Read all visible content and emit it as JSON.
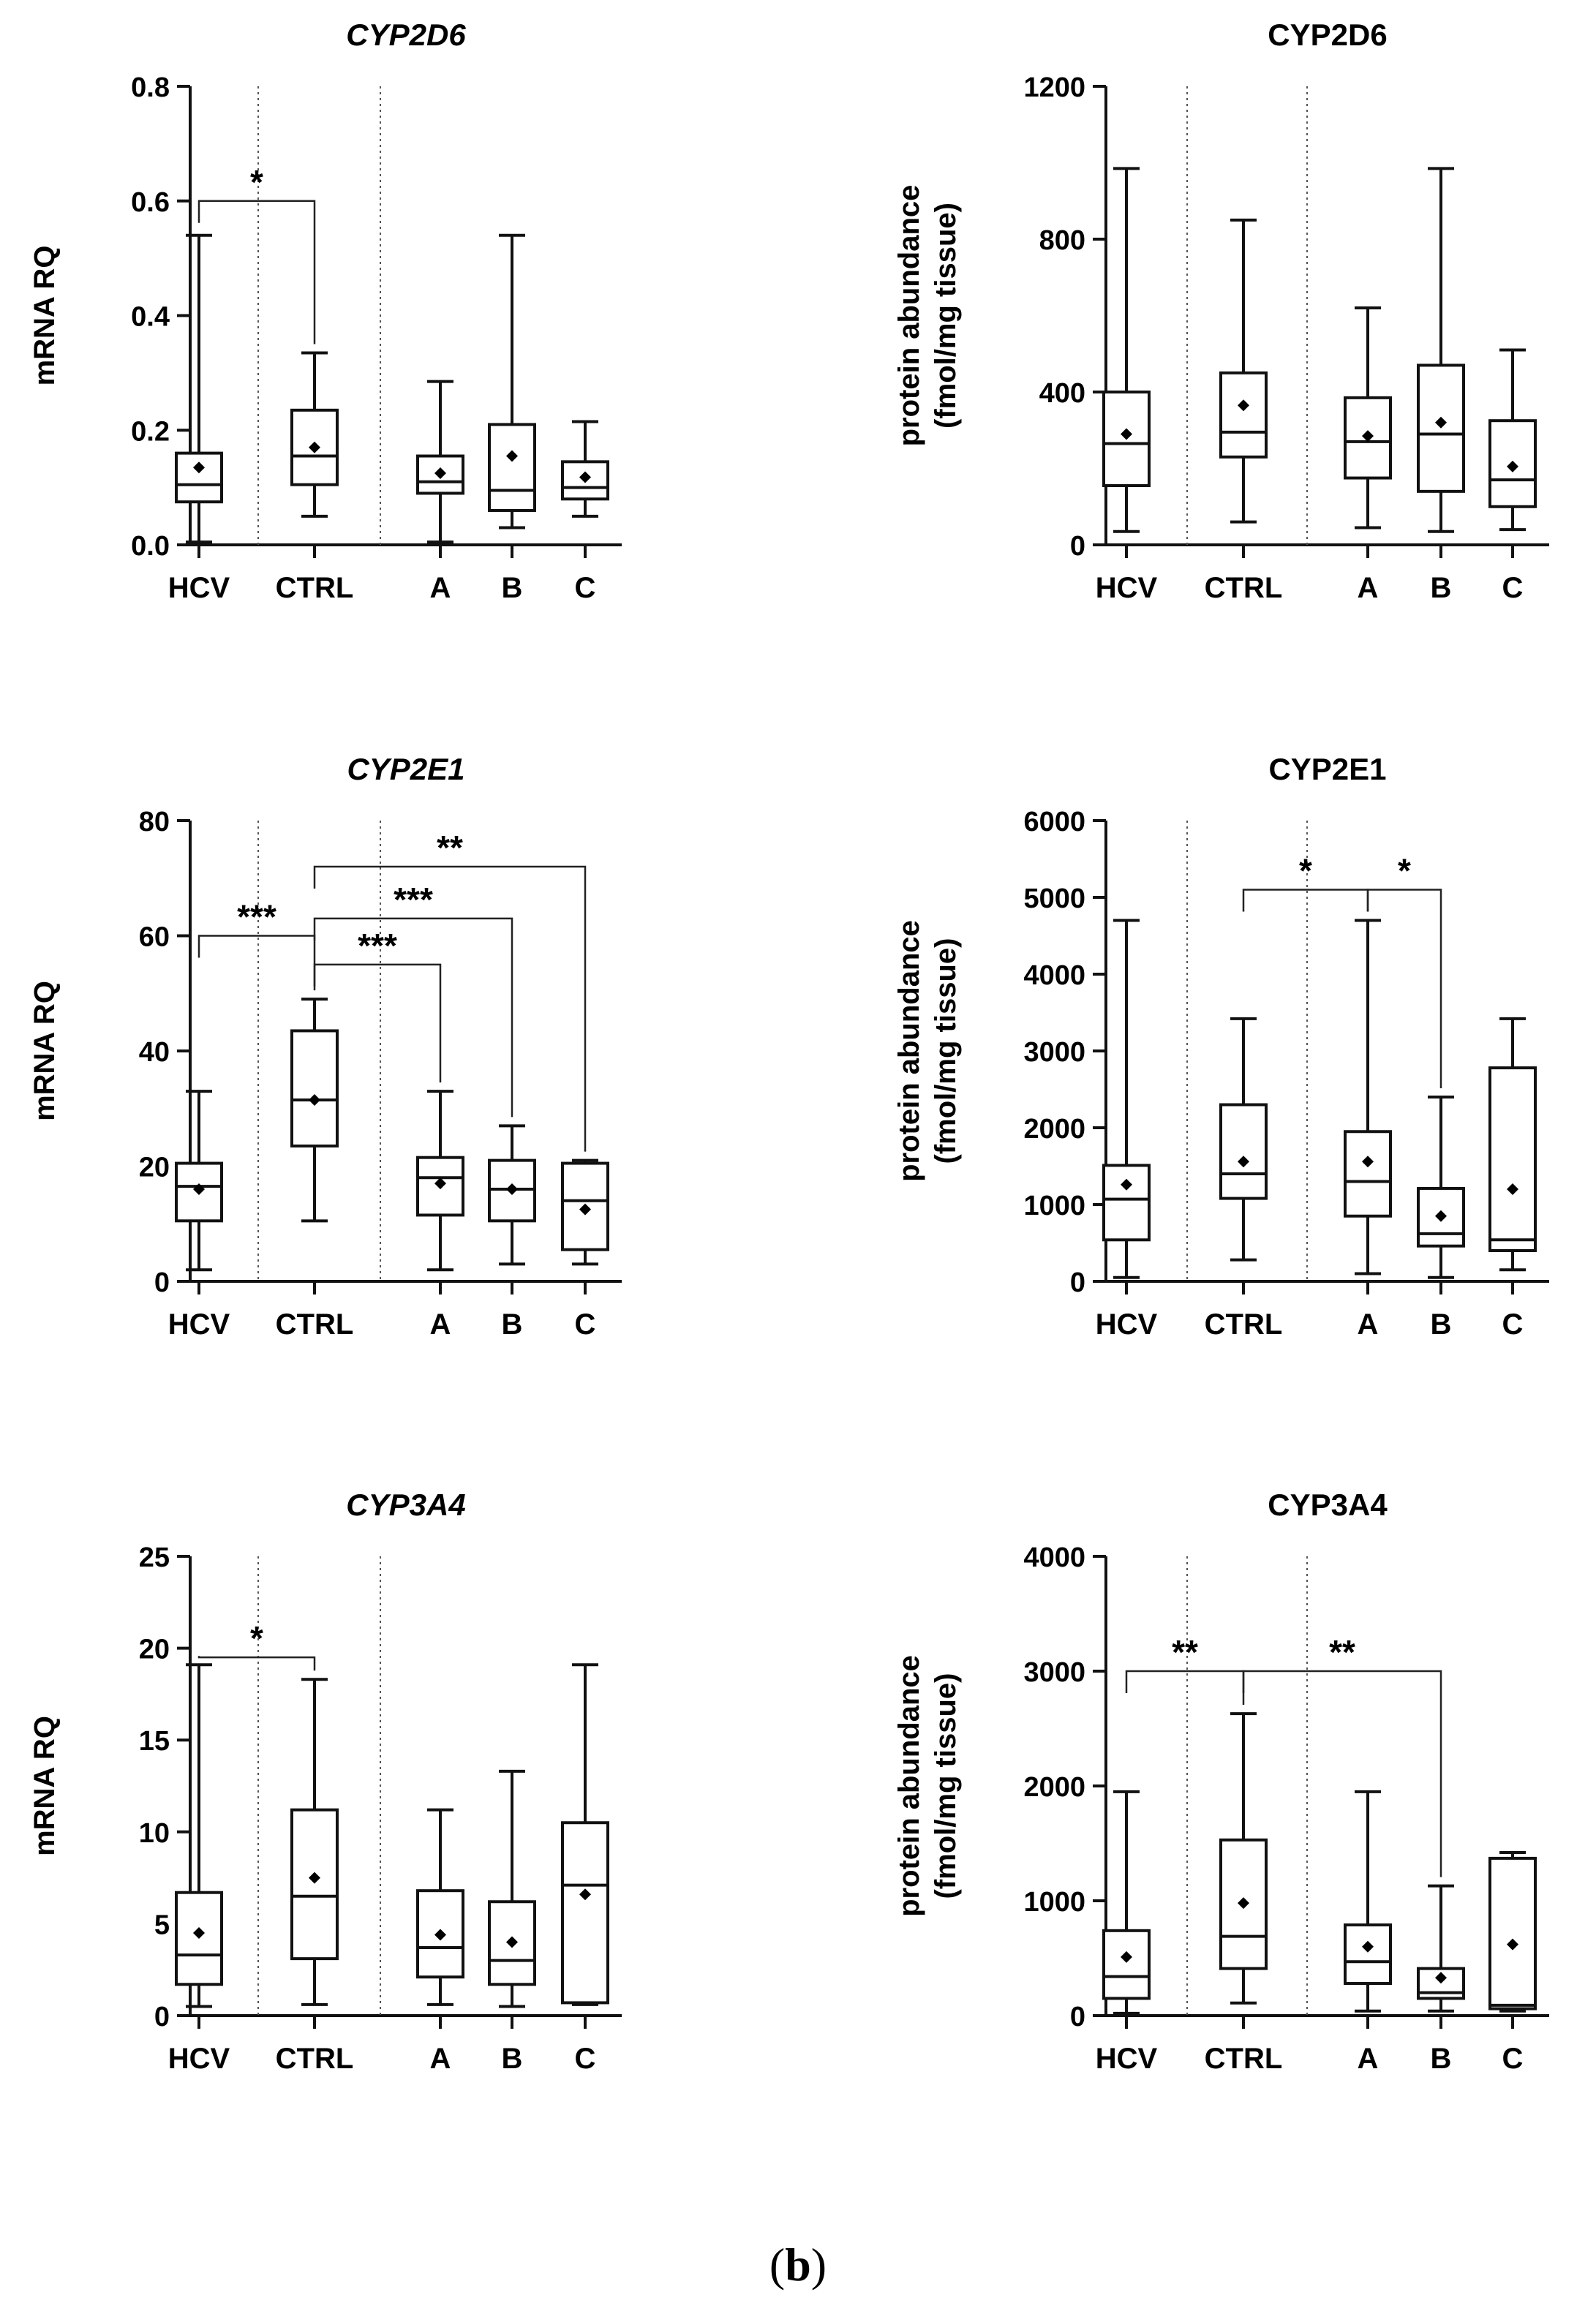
{
  "caption": {
    "open": "(",
    "letter": "b",
    "close": ")"
  },
  "chart_data": [
    {
      "type": "boxplot",
      "title": "CYP2D6",
      "title_italic": true,
      "ylabel": [
        "mRNA RQ"
      ],
      "ylim": [
        0,
        0.8
      ],
      "yticks": [
        "0.0",
        "0.2",
        "0.4",
        "0.6",
        "0.8"
      ],
      "categories": [
        "HCV",
        "CTRL",
        "A",
        "B",
        "C"
      ],
      "boxes": [
        {
          "min": 0.005,
          "q1": 0.075,
          "median": 0.105,
          "q3": 0.16,
          "max": 0.54,
          "mean": 0.135
        },
        {
          "min": 0.05,
          "q1": 0.105,
          "median": 0.155,
          "q3": 0.235,
          "max": 0.335,
          "mean": 0.17
        },
        {
          "min": 0.005,
          "q1": 0.09,
          "median": 0.11,
          "q3": 0.155,
          "max": 0.285,
          "mean": 0.125
        },
        {
          "min": 0.03,
          "q1": 0.06,
          "median": 0.095,
          "q3": 0.21,
          "max": 0.54,
          "mean": 0.155
        },
        {
          "min": 0.05,
          "q1": 0.08,
          "median": 0.1,
          "q3": 0.145,
          "max": 0.215,
          "mean": 0.118
        }
      ],
      "significance": [
        {
          "from": 0,
          "to": 1,
          "label": "*",
          "level": 0.6
        }
      ]
    },
    {
      "type": "boxplot",
      "title": "CYP2D6",
      "title_italic": false,
      "ylabel": [
        "protein abundance",
        "(fmol/mg tissue)"
      ],
      "ylim": [
        0,
        1200
      ],
      "yticks": [
        "0",
        "400",
        "800",
        "1200"
      ],
      "categories": [
        "HCV",
        "CTRL",
        "A",
        "B",
        "C"
      ],
      "boxes": [
        {
          "min": 35,
          "q1": 155,
          "median": 265,
          "q3": 400,
          "max": 985,
          "mean": 290
        },
        {
          "min": 60,
          "q1": 230,
          "median": 295,
          "q3": 450,
          "max": 850,
          "mean": 365
        },
        {
          "min": 45,
          "q1": 175,
          "median": 270,
          "q3": 385,
          "max": 620,
          "mean": 285
        },
        {
          "min": 35,
          "q1": 140,
          "median": 290,
          "q3": 470,
          "max": 985,
          "mean": 320
        },
        {
          "min": 40,
          "q1": 100,
          "median": 170,
          "q3": 325,
          "max": 510,
          "mean": 205
        }
      ],
      "significance": []
    },
    {
      "type": "boxplot",
      "title": "CYP2E1",
      "title_italic": true,
      "ylabel": [
        "mRNA RQ"
      ],
      "ylim": [
        0,
        80
      ],
      "yticks": [
        "0",
        "20",
        "40",
        "60",
        "80"
      ],
      "categories": [
        "HCV",
        "CTRL",
        "A",
        "B",
        "C"
      ],
      "boxes": [
        {
          "min": 2,
          "q1": 10.5,
          "median": 16.5,
          "q3": 20.5,
          "max": 33,
          "mean": 16
        },
        {
          "min": 10.5,
          "q1": 23.5,
          "median": 31.5,
          "q3": 43.5,
          "max": 49,
          "mean": 31.5
        },
        {
          "min": 2,
          "q1": 11.5,
          "median": 18,
          "q3": 21.5,
          "max": 33,
          "mean": 17
        },
        {
          "min": 3,
          "q1": 10.5,
          "median": 16,
          "q3": 21,
          "max": 27,
          "mean": 16
        },
        {
          "min": 3,
          "q1": 5.5,
          "median": 14,
          "q3": 20.5,
          "max": 21,
          "mean": 12.5
        }
      ],
      "significance": [
        {
          "from": 0,
          "to": 1,
          "label": "***",
          "level": 60
        },
        {
          "from": 1,
          "to": 2,
          "label": "***",
          "level": 55
        },
        {
          "from": 1,
          "to": 3,
          "label": "***",
          "level": 63
        },
        {
          "from": 1,
          "to": 4,
          "label": "**",
          "level": 72
        }
      ]
    },
    {
      "type": "boxplot",
      "title": "CYP2E1",
      "title_italic": false,
      "ylabel": [
        "protein abundance",
        "(fmol/mg tissue)"
      ],
      "ylim": [
        0,
        6000
      ],
      "yticks": [
        "0",
        "1000",
        "2000",
        "3000",
        "4000",
        "5000",
        "6000"
      ],
      "categories": [
        "HCV",
        "CTRL",
        "A",
        "B",
        "C"
      ],
      "boxes": [
        {
          "min": 50,
          "q1": 540,
          "median": 1070,
          "q3": 1510,
          "max": 4700,
          "mean": 1260
        },
        {
          "min": 280,
          "q1": 1080,
          "median": 1400,
          "q3": 2300,
          "max": 3420,
          "mean": 1560
        },
        {
          "min": 100,
          "q1": 850,
          "median": 1300,
          "q3": 1950,
          "max": 4700,
          "mean": 1560
        },
        {
          "min": 50,
          "q1": 460,
          "median": 620,
          "q3": 1210,
          "max": 2400,
          "mean": 850
        },
        {
          "min": 150,
          "q1": 400,
          "median": 540,
          "q3": 2780,
          "max": 3420,
          "mean": 1200
        }
      ],
      "significance": [
        {
          "from": 1,
          "to": 2,
          "label": "*",
          "level": 5100
        },
        {
          "from": 2,
          "to": 3,
          "label": "*",
          "level": 5100
        }
      ]
    },
    {
      "type": "boxplot",
      "title": "CYP3A4",
      "title_italic": true,
      "ylabel": [
        "mRNA RQ"
      ],
      "ylim": [
        0,
        25
      ],
      "yticks": [
        "0",
        "5",
        "10",
        "15",
        "20",
        "25"
      ],
      "categories": [
        "HCV",
        "CTRL",
        "A",
        "B",
        "C"
      ],
      "boxes": [
        {
          "min": 0.5,
          "q1": 1.7,
          "median": 3.3,
          "q3": 6.7,
          "max": 19.1,
          "mean": 4.5
        },
        {
          "min": 0.6,
          "q1": 3.1,
          "median": 6.5,
          "q3": 11.2,
          "max": 18.3,
          "mean": 7.5
        },
        {
          "min": 0.6,
          "q1": 2.1,
          "median": 3.7,
          "q3": 6.8,
          "max": 11.2,
          "mean": 4.4
        },
        {
          "min": 0.5,
          "q1": 1.7,
          "median": 3.0,
          "q3": 6.2,
          "max": 13.3,
          "mean": 4.0
        },
        {
          "min": 0.6,
          "q1": 0.7,
          "median": 7.1,
          "q3": 10.5,
          "max": 19.1,
          "mean": 6.6
        }
      ],
      "significance": [
        {
          "from": 0,
          "to": 1,
          "label": "*",
          "level": 19.5
        }
      ]
    },
    {
      "type": "boxplot",
      "title": "CYP3A4",
      "title_italic": false,
      "ylabel": [
        "protein abundance",
        "(fmol/mg tissue)"
      ],
      "ylim": [
        0,
        4000
      ],
      "yticks": [
        "0",
        "1000",
        "2000",
        "3000",
        "4000"
      ],
      "categories": [
        "HCV",
        "CTRL",
        "A",
        "B",
        "C"
      ],
      "boxes": [
        {
          "min": 20,
          "q1": 150,
          "median": 340,
          "q3": 740,
          "max": 1950,
          "mean": 510
        },
        {
          "min": 110,
          "q1": 410,
          "median": 690,
          "q3": 1530,
          "max": 2630,
          "mean": 980
        },
        {
          "min": 40,
          "q1": 280,
          "median": 470,
          "q3": 790,
          "max": 1950,
          "mean": 600
        },
        {
          "min": 40,
          "q1": 150,
          "median": 200,
          "q3": 410,
          "max": 1130,
          "mean": 330
        },
        {
          "min": 40,
          "q1": 60,
          "median": 90,
          "q3": 1370,
          "max": 1420,
          "mean": 620
        }
      ],
      "significance": [
        {
          "from": 0,
          "to": 1,
          "label": "**",
          "level": 3000
        },
        {
          "from": 1,
          "to": 3,
          "label": "**",
          "level": 3000
        }
      ]
    }
  ]
}
